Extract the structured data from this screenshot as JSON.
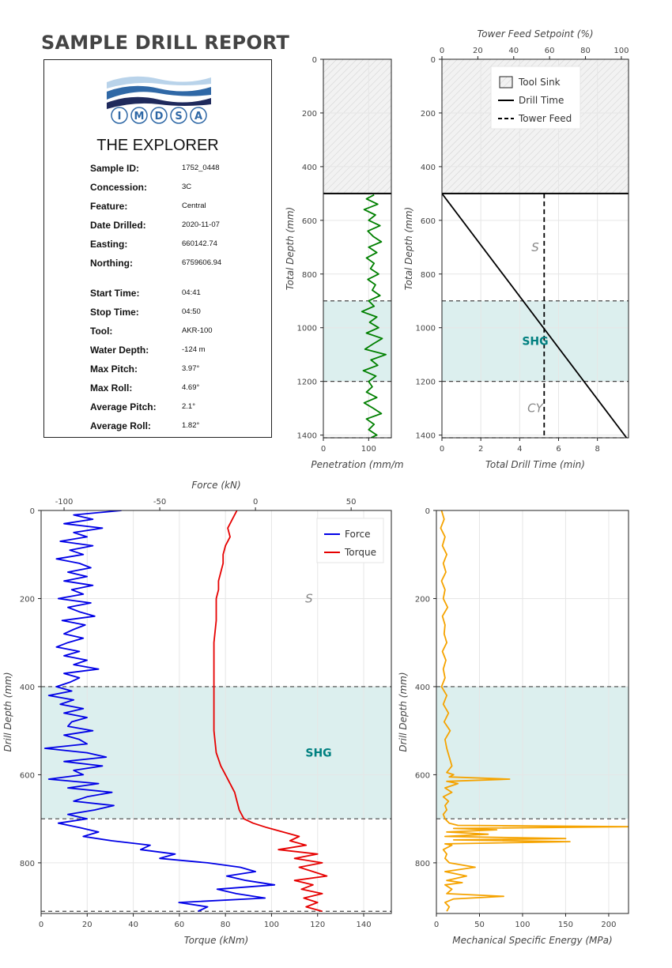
{
  "report": {
    "title": "SAMPLE DRILL REPORT",
    "brand": "THE EXPLORER",
    "logo_text": "IMDSA",
    "logo_letters": [
      "I",
      "M",
      "D",
      "S",
      "A"
    ],
    "fields": [
      {
        "label": "Sample ID:",
        "value": "1752_0448"
      },
      {
        "label": "Concession:",
        "value": "3C"
      },
      {
        "label": "Feature:",
        "value": "Central"
      },
      {
        "label": "Date Drilled:",
        "value": "2020-11-07"
      },
      {
        "label": "Easting:",
        "value": "660142.74"
      },
      {
        "label": "Northing:",
        "value": "6759606.94"
      },
      {
        "label": "Start Time:",
        "value": "04:41"
      },
      {
        "label": "Stop Time:",
        "value": "04:50"
      },
      {
        "label": "Tool:",
        "value": "AKR-100"
      },
      {
        "label": "Water Depth:",
        "value": "-124 m"
      },
      {
        "label": "Max Pitch:",
        "value": "3.97°"
      },
      {
        "label": "Max Roll:",
        "value": "4.69°"
      },
      {
        "label": "Average Pitch:",
        "value": "2.1°"
      },
      {
        "label": "Average Roll:",
        "value": "1.82°"
      }
    ]
  },
  "colors": {
    "penetration": "#008000",
    "drill_time": "#000000",
    "force": "#0000e6",
    "torque": "#e60000",
    "mse": "#f5a300",
    "layer_fill": "#dcefee",
    "layer_label": "#008080",
    "unit_label": "#888888",
    "grid": "#e6e6e6",
    "hatch": "#d0d0d0"
  },
  "chart_data": [
    {
      "id": "penetration",
      "type": "line",
      "xlabel": "Penetration (mm/m",
      "ylabel": "Total Depth (mm)",
      "xlim": [
        0,
        150
      ],
      "ylim": [
        1410,
        0
      ],
      "xticks": [
        0,
        100
      ],
      "yticks": [
        0,
        200,
        400,
        600,
        800,
        1000,
        1200,
        1400
      ],
      "tool_sink_depth": 500,
      "layer_boundaries": [
        900,
        1200,
        1410
      ],
      "highlight_layer": [
        900,
        1200
      ],
      "series": [
        {
          "depth": [
            505,
            520,
            540,
            560,
            580,
            600,
            620,
            640,
            660,
            680,
            700,
            720,
            740,
            760,
            780,
            800,
            820,
            840,
            860,
            880,
            900,
            920,
            940,
            960,
            980,
            1000,
            1020,
            1040,
            1060,
            1080,
            1100,
            1120,
            1140,
            1160,
            1180,
            1200,
            1220,
            1240,
            1260,
            1280,
            1300,
            1320,
            1340,
            1360,
            1380,
            1400,
            1410
          ],
          "value": [
            112,
            95,
            120,
            90,
            115,
            100,
            125,
            98,
            110,
            128,
            100,
            118,
            95,
            112,
            104,
            122,
            98,
            115,
            108,
            125,
            100,
            112,
            85,
            118,
            102,
            122,
            95,
            130,
            110,
            92,
            138,
            105,
            120,
            88,
            116,
            100,
            108,
            95,
            118,
            90,
            110,
            128,
            95,
            112,
            100,
            118,
            105
          ]
        }
      ]
    },
    {
      "id": "drill_time",
      "type": "line",
      "xlabel": "Total Drill Time (min)",
      "x2label": "Tower Feed Setpoint (%)",
      "ylabel": "Total Depth (mm)",
      "xlim": [
        0,
        9.6
      ],
      "x2lim": [
        0,
        104
      ],
      "ylim": [
        1410,
        0
      ],
      "xticks": [
        0,
        2,
        4,
        6,
        8
      ],
      "x2ticks": [
        0,
        20,
        40,
        60,
        80,
        100
      ],
      "yticks": [
        0,
        200,
        400,
        600,
        800,
        1000,
        1200,
        1400
      ],
      "tool_sink_depth": 500,
      "layer_boundaries": [
        900,
        1200,
        1410
      ],
      "highlight_layer": [
        900,
        1200
      ],
      "legend": [
        "Tool Sink",
        "Drill Time",
        "Tower Feed"
      ],
      "legend_position": "top-right",
      "units": [
        {
          "label": "S",
          "depth": 700,
          "x": 4.8,
          "style": "italic"
        },
        {
          "label": "SHG",
          "depth": 1050,
          "x": 4.8,
          "style": "bold"
        },
        {
          "label": "CY",
          "depth": 1300,
          "x": 4.8,
          "style": "italic"
        }
      ],
      "series": [
        {
          "name": "Drill Time",
          "x": [
            0,
            9.5
          ],
          "depth": [
            500,
            1410
          ]
        },
        {
          "name": "Tower Feed",
          "x2": [
            57,
            57
          ],
          "depth": [
            500,
            1410
          ]
        }
      ]
    },
    {
      "id": "force_torque",
      "type": "line",
      "xlabel": "Torque (kNm)",
      "x2label": "Force (kN)",
      "ylabel": "Drill Depth (mm)",
      "xlim": [
        0,
        152
      ],
      "x2lim": [
        -112,
        71
      ],
      "ylim": [
        915,
        0
      ],
      "xticks": [
        0,
        20,
        40,
        60,
        80,
        100,
        120,
        140
      ],
      "x2ticks": [
        -100,
        -50,
        0,
        50
      ],
      "yticks": [
        0,
        200,
        400,
        600,
        800
      ],
      "layer_boundaries": [
        400,
        700,
        910
      ],
      "highlight_layer": [
        400,
        700
      ],
      "legend": [
        "Force",
        "Torque"
      ],
      "legend_position": "top-right",
      "units": [
        {
          "label": "S",
          "depth": 200,
          "x2": 28,
          "style": "italic"
        },
        {
          "label": "SHG",
          "depth": 550,
          "x2": 33,
          "style": "bold"
        }
      ],
      "series": [
        {
          "name": "Force",
          "depth": [
            0,
            10,
            20,
            30,
            40,
            50,
            60,
            70,
            80,
            90,
            100,
            110,
            120,
            130,
            140,
            150,
            160,
            170,
            180,
            190,
            200,
            210,
            220,
            230,
            240,
            250,
            260,
            270,
            280,
            290,
            300,
            310,
            320,
            330,
            340,
            350,
            360,
            370,
            380,
            390,
            400,
            410,
            420,
            430,
            440,
            450,
            460,
            470,
            480,
            490,
            500,
            510,
            520,
            530,
            540,
            550,
            560,
            570,
            580,
            590,
            600,
            610,
            620,
            630,
            640,
            650,
            660,
            670,
            680,
            690,
            700,
            710,
            720,
            730,
            740,
            750,
            760,
            770,
            780,
            790,
            800,
            810,
            820,
            830,
            840,
            850,
            860,
            870,
            880,
            890,
            900,
            910
          ],
          "value": [
            -70,
            -95,
            -85,
            -100,
            -80,
            -95,
            -88,
            -102,
            -85,
            -97,
            -90,
            -104,
            -92,
            -86,
            -98,
            -88,
            -100,
            -85,
            -96,
            -90,
            -103,
            -86,
            -98,
            -92,
            -84,
            -101,
            -89,
            -95,
            -100,
            -90,
            -98,
            -104,
            -92,
            -100,
            -88,
            -95,
            -82,
            -100,
            -92,
            -97,
            -104,
            -96,
            -108,
            -95,
            -102,
            -90,
            -100,
            -88,
            -96,
            -98,
            -85,
            -100,
            -92,
            -88,
            -110,
            -88,
            -78,
            -100,
            -80,
            -95,
            -90,
            -108,
            -82,
            -98,
            -75,
            -88,
            -95,
            -74,
            -84,
            -98,
            -88,
            -103,
            -92,
            -82,
            -90,
            -75,
            -55,
            -60,
            -42,
            -50,
            -25,
            -8,
            0,
            -15,
            -5,
            10,
            -20,
            -10,
            5,
            -40,
            -25,
            -30
          ]
        },
        {
          "name": "Torque",
          "depth": [
            0,
            20,
            40,
            60,
            80,
            100,
            120,
            140,
            160,
            180,
            200,
            250,
            300,
            350,
            400,
            450,
            500,
            550,
            580,
            600,
            620,
            640,
            660,
            680,
            700,
            710,
            720,
            730,
            740,
            750,
            760,
            770,
            780,
            790,
            800,
            810,
            820,
            830,
            840,
            850,
            860,
            870,
            880,
            890,
            900,
            910
          ],
          "value": [
            85,
            83,
            81,
            82,
            80,
            79,
            79,
            78,
            77,
            77,
            76,
            76,
            75,
            75,
            75,
            75,
            75,
            76,
            78,
            80,
            82,
            84,
            85,
            86,
            88,
            92,
            98,
            105,
            112,
            108,
            115,
            103,
            120,
            110,
            122,
            112,
            118,
            124,
            110,
            118,
            113,
            122,
            114,
            120,
            115,
            122
          ]
        }
      ]
    },
    {
      "id": "mse",
      "type": "line",
      "xlabel": "Mechanical Specific Energy (MPa)",
      "ylabel": "Drill Depth (mm)",
      "xlim": [
        0,
        223
      ],
      "ylim": [
        915,
        0
      ],
      "xticks": [
        0,
        50,
        100,
        150,
        200
      ],
      "yticks": [
        0,
        200,
        400,
        600,
        800
      ],
      "layer_boundaries": [
        400,
        700
      ],
      "highlight_layer": [
        400,
        700
      ],
      "series": [
        {
          "name": "MSE",
          "depth": [
            0,
            20,
            40,
            60,
            80,
            100,
            120,
            140,
            160,
            180,
            200,
            220,
            240,
            260,
            280,
            300,
            320,
            340,
            360,
            380,
            400,
            420,
            440,
            460,
            480,
            500,
            520,
            540,
            560,
            580,
            595,
            600,
            605,
            610,
            615,
            620,
            630,
            640,
            650,
            660,
            670,
            680,
            690,
            700,
            710,
            715,
            718,
            722,
            725,
            730,
            735,
            740,
            745,
            748,
            752,
            757,
            760,
            770,
            780,
            790,
            800,
            810,
            820,
            830,
            840,
            845,
            850,
            860,
            870,
            876,
            882,
            890,
            900,
            910
          ],
          "value": [
            6,
            9,
            5,
            10,
            7,
            12,
            8,
            11,
            6,
            10,
            8,
            13,
            7,
            10,
            9,
            12,
            7,
            11,
            8,
            10,
            6,
            12,
            8,
            14,
            9,
            16,
            10,
            12,
            15,
            18,
            12,
            20,
            15,
            85,
            12,
            25,
            10,
            18,
            8,
            14,
            10,
            12,
            8,
            10,
            15,
            25,
            222,
            20,
            70,
            12,
            60,
            10,
            150,
            20,
            155,
            10,
            18,
            8,
            12,
            10,
            15,
            45,
            10,
            35,
            12,
            30,
            10,
            18,
            12,
            78,
            20,
            10,
            15,
            12
          ]
        }
      ]
    }
  ]
}
